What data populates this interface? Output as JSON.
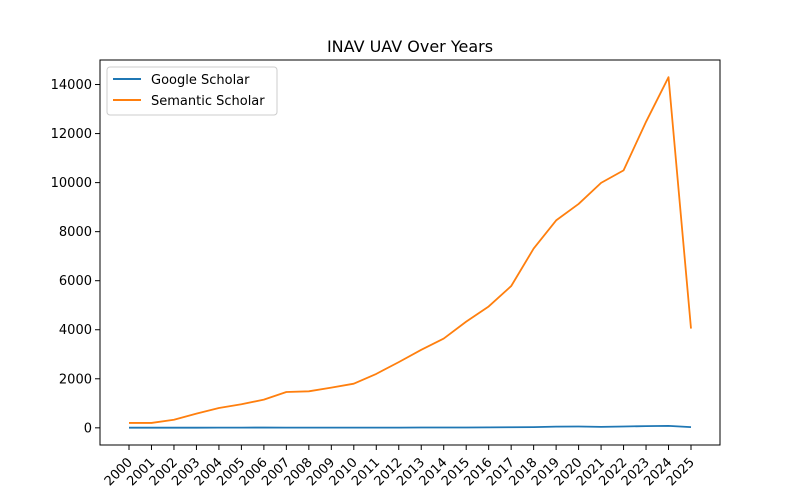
{
  "chart_data": {
    "type": "line",
    "title": "INAV  UAV Over Years",
    "xlabel": "",
    "ylabel": "",
    "categories": [
      "2000",
      "2001",
      "2002",
      "2003",
      "2004",
      "2005",
      "2006",
      "2007",
      "2008",
      "2009",
      "2010",
      "2011",
      "2012",
      "2013",
      "2014",
      "2015",
      "2016",
      "2017",
      "2018",
      "2019",
      "2020",
      "2021",
      "2022",
      "2023",
      "2024",
      "2025"
    ],
    "ylim": [
      -700,
      15000
    ],
    "yticks": [
      0,
      2000,
      4000,
      6000,
      8000,
      10000,
      12000,
      14000
    ],
    "legend": "top-left",
    "grid": false,
    "series": [
      {
        "name": "Google Scholar",
        "color": "#1f77b4",
        "values": [
          5,
          5,
          5,
          5,
          8,
          10,
          12,
          10,
          10,
          10,
          8,
          10,
          8,
          15,
          15,
          15,
          20,
          25,
          30,
          50,
          55,
          40,
          55,
          70,
          80,
          30
        ]
      },
      {
        "name": "Semantic Scholar",
        "color": "#ff7f0e",
        "values": [
          200,
          200,
          330,
          580,
          810,
          960,
          1150,
          1460,
          1490,
          1640,
          1800,
          2200,
          2680,
          3180,
          3640,
          4330,
          4950,
          5780,
          7310,
          8460,
          9130,
          9990,
          10500,
          12480,
          14300,
          4050
        ]
      }
    ]
  }
}
